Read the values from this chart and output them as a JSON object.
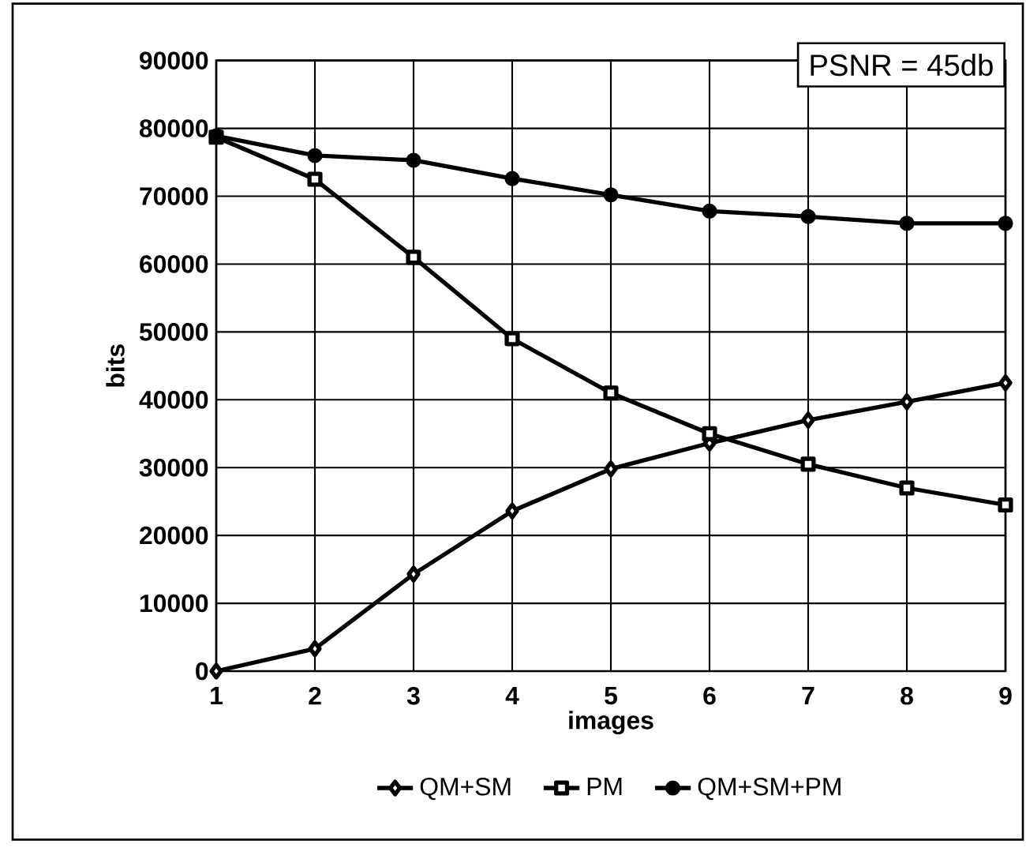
{
  "chart_data": {
    "type": "line",
    "xlabel": "images",
    "ylabel": "bits",
    "categories": [
      "1",
      "2",
      "3",
      "4",
      "5",
      "6",
      "7",
      "8",
      "9"
    ],
    "series": [
      {
        "name": "QM+SM",
        "color": "#000000",
        "marker": "diamond",
        "values": [
          0,
          3300,
          14300,
          23600,
          29800,
          33600,
          37000,
          39700,
          42500
        ]
      },
      {
        "name": "PM",
        "color": "#000000",
        "marker": "square",
        "values": [
          78700,
          72500,
          61000,
          49000,
          41000,
          35000,
          30500,
          27000,
          24500
        ]
      },
      {
        "name": "QM+SM+PM",
        "color": "#000000",
        "marker": "circle",
        "values": [
          78900,
          76000,
          75300,
          72600,
          70200,
          67800,
          67000,
          66000,
          66000
        ]
      }
    ],
    "ylim": [
      0,
      90000
    ],
    "yticks": [
      0,
      10000,
      20000,
      30000,
      40000,
      50000,
      60000,
      70000,
      80000,
      90000
    ],
    "grid": true,
    "legend": "bottom",
    "line_style": "solid",
    "annotations": [
      "PSNR = 45db"
    ]
  }
}
